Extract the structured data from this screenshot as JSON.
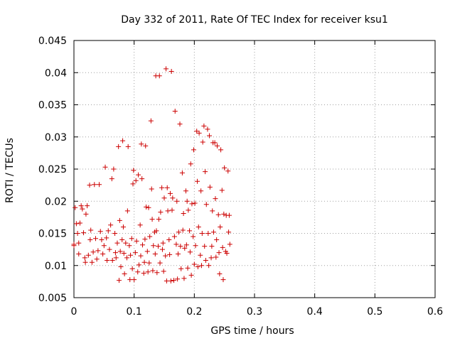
{
  "chart_data": {
    "type": "scatter",
    "title": "Day 332 of 2011, Rate Of TEC Index for receiver ksu1",
    "xlabel": "GPS time / hours",
    "ylabel": "ROTI / TECUs",
    "xlim": [
      0,
      0.6
    ],
    "ylim": [
      0.005,
      0.045
    ],
    "xticks": [
      0,
      0.1,
      0.2,
      0.3,
      0.4,
      0.5,
      0.6
    ],
    "xtick_labels": [
      "0",
      "0.1",
      "0.2",
      "0.3",
      "0.4",
      "0.5",
      "0.6"
    ],
    "yticks": [
      0.005,
      0.01,
      0.015,
      0.02,
      0.025,
      0.03,
      0.035,
      0.04,
      0.045
    ],
    "ytick_labels": [
      "0.005",
      "0.01",
      "0.015",
      "0.02",
      "0.025",
      "0.03",
      "0.035",
      "0.04",
      "0.045"
    ],
    "grid": true,
    "marker": "+",
    "color": "#cc0000",
    "points": [
      [
        0.0,
        0.0133
      ],
      [
        0.0,
        0.0131
      ],
      [
        0.002,
        0.019
      ],
      [
        0.004,
        0.0165
      ],
      [
        0.006,
        0.015
      ],
      [
        0.008,
        0.0135
      ],
      [
        0.008,
        0.0118
      ],
      [
        0.01,
        0.0166
      ],
      [
        0.012,
        0.0193
      ],
      [
        0.014,
        0.0188
      ],
      [
        0.016,
        0.0151
      ],
      [
        0.018,
        0.0112
      ],
      [
        0.019,
        0.0105
      ],
      [
        0.02,
        0.018
      ],
      [
        0.022,
        0.0193
      ],
      [
        0.024,
        0.0116
      ],
      [
        0.026,
        0.0225
      ],
      [
        0.027,
        0.014
      ],
      [
        0.028,
        0.0155
      ],
      [
        0.03,
        0.0105
      ],
      [
        0.032,
        0.0121
      ],
      [
        0.034,
        0.0226
      ],
      [
        0.036,
        0.0142
      ],
      [
        0.038,
        0.011
      ],
      [
        0.04,
        0.0123
      ],
      [
        0.042,
        0.0226
      ],
      [
        0.044,
        0.0153
      ],
      [
        0.046,
        0.014
      ],
      [
        0.048,
        0.0118
      ],
      [
        0.05,
        0.0131
      ],
      [
        0.052,
        0.0253
      ],
      [
        0.054,
        0.0143
      ],
      [
        0.055,
        0.0108
      ],
      [
        0.057,
        0.0154
      ],
      [
        0.059,
        0.0125
      ],
      [
        0.061,
        0.0163
      ],
      [
        0.063,
        0.0235
      ],
      [
        0.064,
        0.0108
      ],
      [
        0.066,
        0.025
      ],
      [
        0.068,
        0.015
      ],
      [
        0.069,
        0.012
      ],
      [
        0.07,
        0.0112
      ],
      [
        0.072,
        0.0135
      ],
      [
        0.074,
        0.0285
      ],
      [
        0.075,
        0.0077
      ],
      [
        0.076,
        0.017
      ],
      [
        0.077,
        0.0122
      ],
      [
        0.078,
        0.0098
      ],
      [
        0.08,
        0.014
      ],
      [
        0.081,
        0.0294
      ],
      [
        0.082,
        0.016
      ],
      [
        0.083,
        0.0119
      ],
      [
        0.084,
        0.0087
      ],
      [
        0.086,
        0.0135
      ],
      [
        0.088,
        0.0112
      ],
      [
        0.089,
        0.0185
      ],
      [
        0.09,
        0.0285
      ],
      [
        0.092,
        0.0131
      ],
      [
        0.093,
        0.0078
      ],
      [
        0.094,
        0.0116
      ],
      [
        0.096,
        0.0142
      ],
      [
        0.097,
        0.0095
      ],
      [
        0.098,
        0.0227
      ],
      [
        0.099,
        0.0248
      ],
      [
        0.1,
        0.0078
      ],
      [
        0.102,
        0.012
      ],
      [
        0.103,
        0.0232
      ],
      [
        0.104,
        0.0138
      ],
      [
        0.106,
        0.009
      ],
      [
        0.107,
        0.0241
      ],
      [
        0.108,
        0.0101
      ],
      [
        0.11,
        0.0163
      ],
      [
        0.111,
        0.0115
      ],
      [
        0.112,
        0.0289
      ],
      [
        0.113,
        0.0235
      ],
      [
        0.114,
        0.0132
      ],
      [
        0.116,
        0.0088
      ],
      [
        0.117,
        0.0105
      ],
      [
        0.118,
        0.0141
      ],
      [
        0.119,
        0.0286
      ],
      [
        0.12,
        0.0191
      ],
      [
        0.122,
        0.0122
      ],
      [
        0.123,
        0.009
      ],
      [
        0.124,
        0.019
      ],
      [
        0.125,
        0.0104
      ],
      [
        0.126,
        0.0145
      ],
      [
        0.128,
        0.0325
      ],
      [
        0.129,
        0.0219
      ],
      [
        0.13,
        0.0172
      ],
      [
        0.131,
        0.0092
      ],
      [
        0.132,
        0.0131
      ],
      [
        0.134,
        0.0152
      ],
      [
        0.135,
        0.0118
      ],
      [
        0.136,
        0.0395
      ],
      [
        0.137,
        0.0154
      ],
      [
        0.138,
        0.0089
      ],
      [
        0.14,
        0.013
      ],
      [
        0.141,
        0.0172
      ],
      [
        0.142,
        0.0395
      ],
      [
        0.143,
        0.0104
      ],
      [
        0.144,
        0.0183
      ],
      [
        0.146,
        0.0221
      ],
      [
        0.147,
        0.0125
      ],
      [
        0.148,
        0.0135
      ],
      [
        0.149,
        0.0091
      ],
      [
        0.15,
        0.0205
      ],
      [
        0.152,
        0.0115
      ],
      [
        0.153,
        0.0406
      ],
      [
        0.154,
        0.0076
      ],
      [
        0.155,
        0.0221
      ],
      [
        0.156,
        0.0185
      ],
      [
        0.158,
        0.014
      ],
      [
        0.159,
        0.0117
      ],
      [
        0.16,
        0.0212
      ],
      [
        0.161,
        0.0076
      ],
      [
        0.162,
        0.0402
      ],
      [
        0.163,
        0.0186
      ],
      [
        0.164,
        0.0205
      ],
      [
        0.166,
        0.0077
      ],
      [
        0.167,
        0.0145
      ],
      [
        0.168,
        0.034
      ],
      [
        0.17,
        0.0133
      ],
      [
        0.171,
        0.02
      ],
      [
        0.172,
        0.0079
      ],
      [
        0.173,
        0.0118
      ],
      [
        0.174,
        0.0152
      ],
      [
        0.176,
        0.032
      ],
      [
        0.177,
        0.013
      ],
      [
        0.178,
        0.0095
      ],
      [
        0.18,
        0.0244
      ],
      [
        0.181,
        0.0155
      ],
      [
        0.182,
        0.0181
      ],
      [
        0.183,
        0.008
      ],
      [
        0.184,
        0.0127
      ],
      [
        0.186,
        0.0216
      ],
      [
        0.187,
        0.0132
      ],
      [
        0.188,
        0.02
      ],
      [
        0.189,
        0.0096
      ],
      [
        0.19,
        0.0186
      ],
      [
        0.192,
        0.0154
      ],
      [
        0.193,
        0.0121
      ],
      [
        0.194,
        0.0258
      ],
      [
        0.195,
        0.0085
      ],
      [
        0.196,
        0.0196
      ],
      [
        0.198,
        0.0145
      ],
      [
        0.199,
        0.028
      ],
      [
        0.2,
        0.0102
      ],
      [
        0.201,
        0.0197
      ],
      [
        0.202,
        0.0131
      ],
      [
        0.204,
        0.0309
      ],
      [
        0.205,
        0.0231
      ],
      [
        0.206,
        0.0098
      ],
      [
        0.207,
        0.016
      ],
      [
        0.208,
        0.0306
      ],
      [
        0.21,
        0.0116
      ],
      [
        0.211,
        0.0216
      ],
      [
        0.212,
        0.01
      ],
      [
        0.213,
        0.015
      ],
      [
        0.214,
        0.0292
      ],
      [
        0.216,
        0.0317
      ],
      [
        0.217,
        0.013
      ],
      [
        0.218,
        0.0246
      ],
      [
        0.219,
        0.0108
      ],
      [
        0.22,
        0.0195
      ],
      [
        0.222,
        0.0312
      ],
      [
        0.223,
        0.015
      ],
      [
        0.224,
        0.01
      ],
      [
        0.225,
        0.0302
      ],
      [
        0.226,
        0.0222
      ],
      [
        0.228,
        0.0112
      ],
      [
        0.229,
        0.013
      ],
      [
        0.23,
        0.0185
      ],
      [
        0.231,
        0.0291
      ],
      [
        0.232,
        0.0152
      ],
      [
        0.234,
        0.0291
      ],
      [
        0.235,
        0.0204
      ],
      [
        0.236,
        0.0113
      ],
      [
        0.237,
        0.014
      ],
      [
        0.238,
        0.0286
      ],
      [
        0.24,
        0.0179
      ],
      [
        0.241,
        0.012
      ],
      [
        0.242,
        0.0087
      ],
      [
        0.243,
        0.016
      ],
      [
        0.244,
        0.028
      ],
      [
        0.246,
        0.0217
      ],
      [
        0.247,
        0.0128
      ],
      [
        0.248,
        0.0078
      ],
      [
        0.249,
        0.018
      ],
      [
        0.25,
        0.0252
      ],
      [
        0.252,
        0.0122
      ],
      [
        0.253,
        0.0178
      ],
      [
        0.254,
        0.0119
      ],
      [
        0.256,
        0.0247
      ],
      [
        0.257,
        0.0152
      ],
      [
        0.258,
        0.0178
      ],
      [
        0.259,
        0.0133
      ]
    ]
  }
}
